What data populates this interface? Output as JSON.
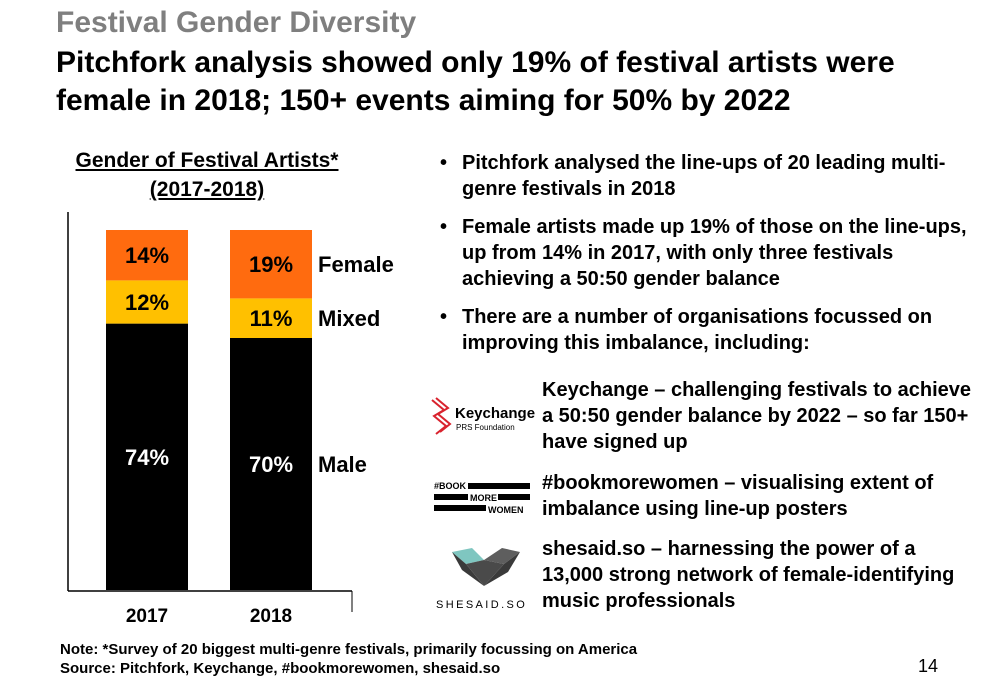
{
  "header": {
    "kicker": "Festival Gender Diversity",
    "headline": "Pitchfork analysis showed only 19% of festival artists were female in 2018; 150+ events aiming for 50% by 2022"
  },
  "chart_title": "Gender of Festival Artists* (2017-2018)",
  "chart_data": {
    "type": "bar",
    "stacked": true,
    "title": "Gender of Festival Artists* (2017-2018)",
    "categories": [
      "2017",
      "2018"
    ],
    "series": [
      {
        "name": "Male",
        "values": [
          74,
          70
        ],
        "color": "#000000",
        "label_color": "#ffffff"
      },
      {
        "name": "Mixed",
        "values": [
          12,
          11
        ],
        "color": "#ffc000",
        "label_color": "#000000"
      },
      {
        "name": "Female",
        "values": [
          14,
          19
        ],
        "color": "#ff6b0f",
        "label_color": "#000000"
      }
    ],
    "data_labels": [
      [
        "74%",
        "12%",
        "14%"
      ],
      [
        "70%",
        "11%",
        "19%"
      ]
    ],
    "legend_placement": "right of bars",
    "ylim": [
      0,
      100
    ],
    "grid": false
  },
  "bullets": [
    "Pitchfork analysed the line-ups of 20 leading multi-genre festivals in 2018",
    "Female artists made up 19% of those on the line-ups, up from 14% in 2017, with only three festivals achieving a 50:50 gender balance",
    "There are a number of organisations focussed on improving this imbalance, including:"
  ],
  "orgs": [
    {
      "logo_text": "Keychange",
      "logo_sub": "PRS Foundation",
      "text": "Keychange – challenging festivals to achieve a 50:50 gender balance by 2022 – so far 150+ have signed up"
    },
    {
      "logo_lines": [
        "#BOOK",
        "MORE",
        "WOMEN"
      ],
      "text": "#bookmorewomen – visualising extent of imbalance using line-up posters"
    },
    {
      "logo_text": "SHESAID.SO",
      "text": "shesaid.so – harnessing the power of a 13,000 strong network of female-identifying music professionals"
    }
  ],
  "footer": {
    "note": "Note: *Survey of 20 biggest multi-genre festivals, primarily focussing on America",
    "source": "Source: Pitchfork, Keychange, #bookmorewomen, shesaid.so",
    "page": "14"
  },
  "colors": {
    "female": "#ff6b0f",
    "mixed": "#ffc000",
    "male": "#000000",
    "kicker": "#7f7f7f",
    "keychange_red": "#d9232e",
    "shesaid_dark": "#3a3a3a",
    "shesaid_teal": "#7fc6c0"
  }
}
